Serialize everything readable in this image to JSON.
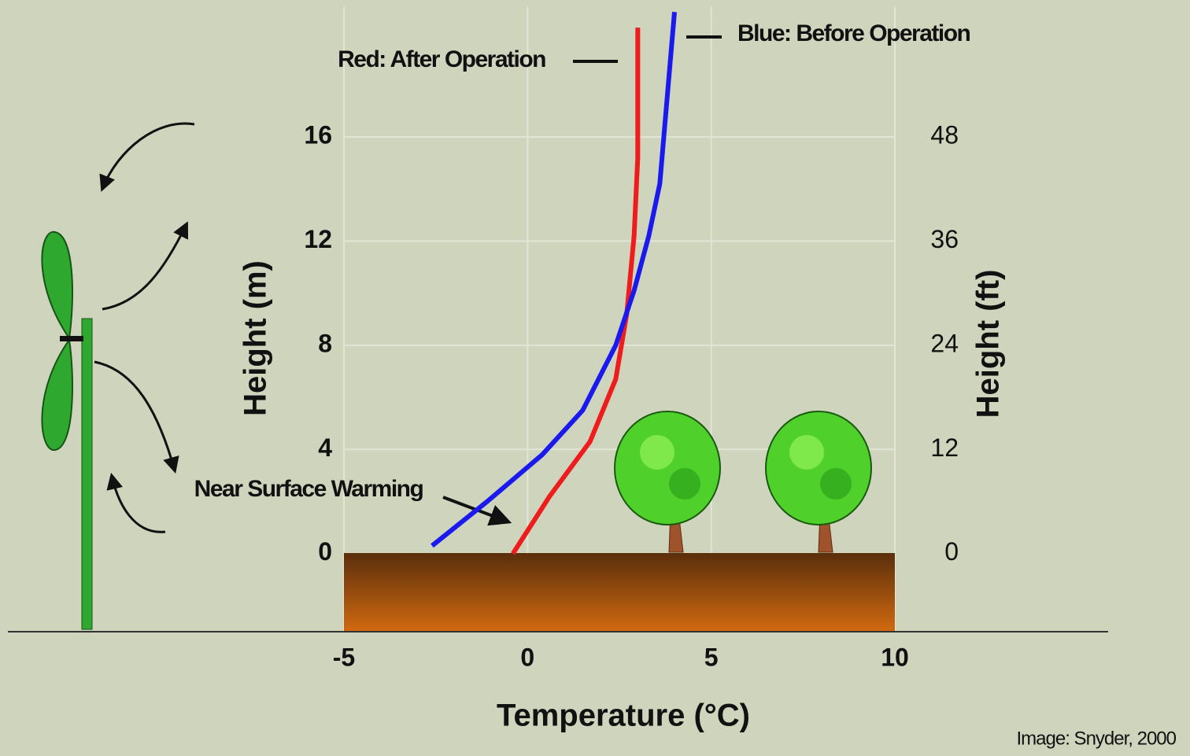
{
  "chart_data": {
    "type": "line",
    "xlabel": "Temperature (°C)",
    "ylabel": "Height (m)",
    "y2label": "Height (ft)",
    "xlim": [
      -5,
      10
    ],
    "xticks": [
      -5,
      0,
      5,
      10
    ],
    "ylim": [
      -3,
      21
    ],
    "yticks": [
      0,
      4,
      8,
      12,
      16
    ],
    "y2lim": [
      -9,
      63
    ],
    "y2ticks": [
      0,
      12,
      24,
      36,
      48
    ],
    "grid": true,
    "series": [
      {
        "name": "Red: After Operation",
        "color": "#ee1c1c",
        "x": [
          -0.4,
          0.6,
          1.7,
          2.4,
          2.7,
          2.9,
          3.0,
          3.0
        ],
        "values": [
          0,
          2.2,
          4.3,
          6.7,
          9.2,
          12.2,
          15.2,
          20.2
        ]
      },
      {
        "name": "Blue: Before Operation",
        "color": "#1a1aee",
        "x": [
          -2.6,
          -1.1,
          0.4,
          1.5,
          2.4,
          2.9,
          3.3,
          3.6,
          3.8,
          4.0
        ],
        "values": [
          0.3,
          2.0,
          3.8,
          5.5,
          8.0,
          10.1,
          12.2,
          14.2,
          17.5,
          20.8
        ]
      }
    ],
    "annotation": "Near Surface Warming",
    "credit": "Image: Snyder, 2000"
  }
}
